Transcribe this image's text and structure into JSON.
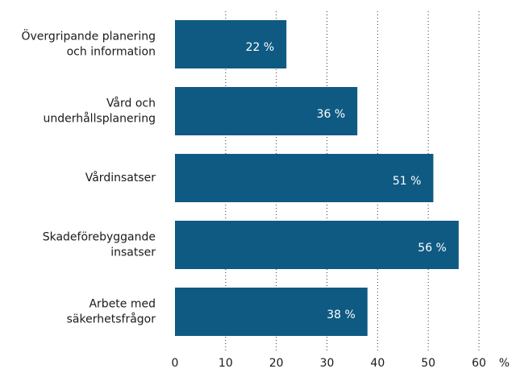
{
  "chart_data": {
    "type": "bar",
    "orientation": "horizontal",
    "categories": [
      "Övergripande planering\noch information",
      "Vård och\nunderhållsplanering",
      "Vårdinsatser",
      "Skadeförebyggande\ninsatser",
      "Arbete med\nsäkerhetsfrågor"
    ],
    "values": [
      22,
      36,
      51,
      56,
      38
    ],
    "value_labels": [
      "22 %",
      "36 %",
      "51 %",
      "56 %",
      "38 %"
    ],
    "color": "#0f5a82",
    "xlim": [
      0,
      60
    ],
    "xticks": [
      0,
      10,
      20,
      30,
      40,
      50,
      60
    ],
    "xlabel": "%",
    "grid": true
  }
}
